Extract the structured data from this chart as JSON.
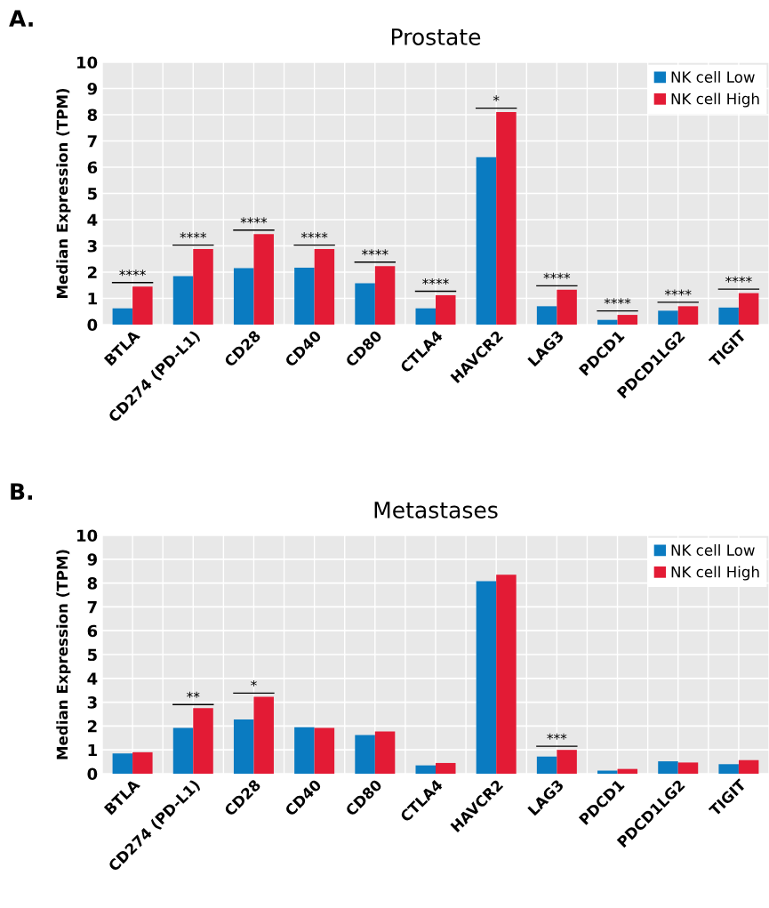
{
  "chart_data": [
    {
      "type": "bar",
      "title": "Prostate",
      "ylabel": "Median Expression (TPM)",
      "categories": [
        "BTLA",
        "CD274 (PD-L1)",
        "CD28",
        "CD40",
        "CD80",
        "CTLA4",
        "HAVCR2",
        "LAG3",
        "PDCD1",
        "PDCD1LG2",
        "TIGIT"
      ],
      "series": [
        {
          "name": "NK cell Low",
          "color": "#0a7bc1",
          "values": [
            0.62,
            1.85,
            2.15,
            2.17,
            1.58,
            0.62,
            6.38,
            0.7,
            0.18,
            0.53,
            0.65
          ]
        },
        {
          "name": "NK cell High",
          "color": "#e31b35",
          "values": [
            1.45,
            2.88,
            3.45,
            2.88,
            2.23,
            1.12,
            8.1,
            1.33,
            0.37,
            0.7,
            1.2
          ]
        }
      ],
      "ylim": [
        0,
        10
      ],
      "yticks": [
        0,
        1,
        2,
        3,
        4,
        5,
        6,
        7,
        8,
        9,
        10
      ],
      "grid": true,
      "legend": "top right",
      "annotations": [
        "A.",
        "****",
        "****",
        "****",
        "****",
        "****",
        "****",
        "*",
        "****",
        "****",
        "****",
        "****"
      ]
    },
    {
      "type": "bar",
      "title": "Metastases",
      "ylabel": "Median Expression (TPM)",
      "categories": [
        "BTLA",
        "CD274 (PD-L1)",
        "CD28",
        "CD40",
        "CD80",
        "CTLA4",
        "HAVCR2",
        "LAG3",
        "PDCD1",
        "PDCD1LG2",
        "TIGIT"
      ],
      "series": [
        {
          "name": "NK cell Low",
          "color": "#0a7bc1",
          "values": [
            0.85,
            1.92,
            2.28,
            1.95,
            1.62,
            0.35,
            8.08,
            0.72,
            0.13,
            0.52,
            0.4
          ]
        },
        {
          "name": "NK cell High",
          "color": "#e31b35",
          "values": [
            0.9,
            2.75,
            3.23,
            1.92,
            1.77,
            0.45,
            8.35,
            1.0,
            0.2,
            0.47,
            0.57
          ]
        }
      ],
      "ylim": [
        0,
        10
      ],
      "yticks": [
        0,
        1,
        2,
        3,
        4,
        5,
        6,
        7,
        8,
        9,
        10
      ],
      "grid": true,
      "legend": "top right",
      "annotations": [
        "B.",
        "**",
        "*",
        "***"
      ]
    }
  ]
}
